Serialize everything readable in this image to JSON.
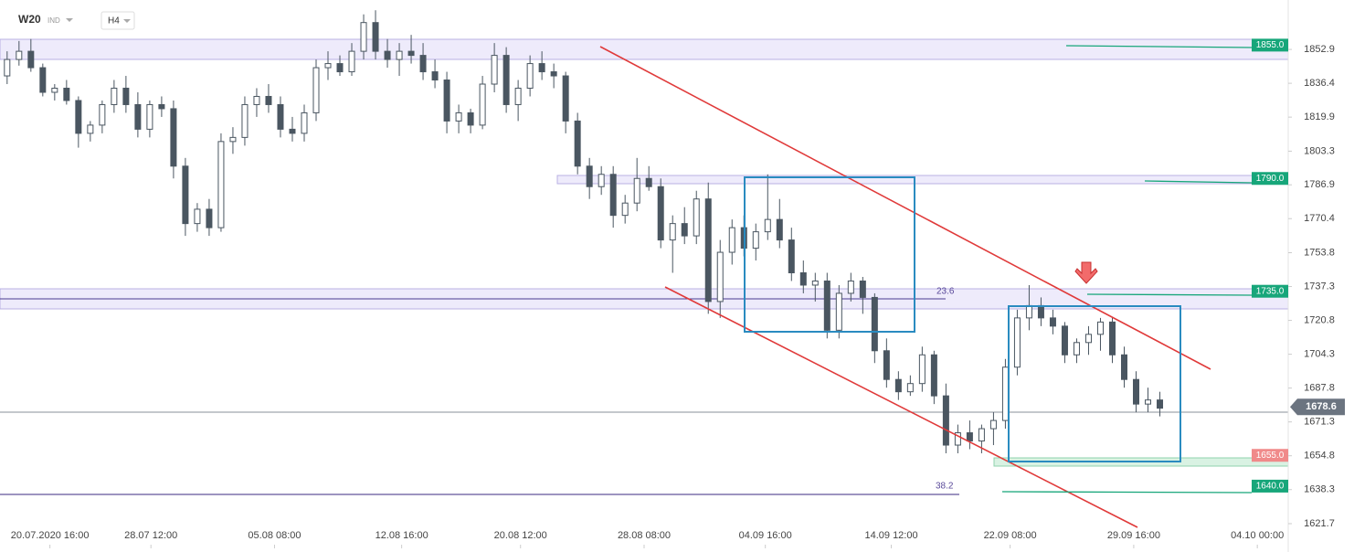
{
  "chart_data": {
    "type": "candlestick",
    "symbol": "W20",
    "market": "IND",
    "interval": "H4",
    "up_color": "#ffffff",
    "down_color": "#4a5661",
    "outline_color": "#4a5661",
    "ohlc": [
      [
        1840,
        1852,
        1836,
        1848
      ],
      [
        1848,
        1857,
        1845,
        1852
      ],
      [
        1852,
        1858,
        1842,
        1844
      ],
      [
        1844,
        1846,
        1830,
        1832
      ],
      [
        1832,
        1836,
        1828,
        1834
      ],
      [
        1834,
        1838,
        1826,
        1828
      ],
      [
        1828,
        1830,
        1805,
        1812
      ],
      [
        1812,
        1818,
        1808,
        1816
      ],
      [
        1816,
        1828,
        1812,
        1826
      ],
      [
        1826,
        1838,
        1822,
        1834
      ],
      [
        1834,
        1840,
        1822,
        1826
      ],
      [
        1826,
        1832,
        1810,
        1814
      ],
      [
        1814,
        1828,
        1810,
        1826
      ],
      [
        1826,
        1830,
        1820,
        1824
      ],
      [
        1824,
        1828,
        1790,
        1796
      ],
      [
        1796,
        1800,
        1762,
        1768
      ],
      [
        1768,
        1778,
        1764,
        1775
      ],
      [
        1775,
        1780,
        1762,
        1766
      ],
      [
        1766,
        1812,
        1764,
        1808
      ],
      [
        1808,
        1815,
        1802,
        1810
      ],
      [
        1810,
        1830,
        1806,
        1826
      ],
      [
        1826,
        1834,
        1820,
        1830
      ],
      [
        1830,
        1836,
        1822,
        1826
      ],
      [
        1826,
        1830,
        1810,
        1814
      ],
      [
        1814,
        1820,
        1808,
        1812
      ],
      [
        1812,
        1826,
        1808,
        1822
      ],
      [
        1822,
        1848,
        1818,
        1844
      ],
      [
        1844,
        1852,
        1838,
        1846
      ],
      [
        1846,
        1850,
        1840,
        1842
      ],
      [
        1842,
        1856,
        1840,
        1852
      ],
      [
        1852,
        1870,
        1848,
        1866
      ],
      [
        1866,
        1872,
        1848,
        1852
      ],
      [
        1852,
        1858,
        1844,
        1848
      ],
      [
        1848,
        1856,
        1840,
        1852
      ],
      [
        1852,
        1860,
        1846,
        1850
      ],
      [
        1850,
        1856,
        1838,
        1842
      ],
      [
        1842,
        1848,
        1834,
        1838
      ],
      [
        1838,
        1842,
        1812,
        1818
      ],
      [
        1818,
        1826,
        1812,
        1822
      ],
      [
        1822,
        1824,
        1812,
        1816
      ],
      [
        1816,
        1840,
        1814,
        1836
      ],
      [
        1836,
        1856,
        1832,
        1850
      ],
      [
        1850,
        1854,
        1822,
        1826
      ],
      [
        1826,
        1838,
        1818,
        1834
      ],
      [
        1834,
        1850,
        1830,
        1846
      ],
      [
        1846,
        1852,
        1838,
        1842
      ],
      [
        1842,
        1846,
        1834,
        1840
      ],
      [
        1840,
        1842,
        1812,
        1818
      ],
      [
        1818,
        1822,
        1792,
        1796
      ],
      [
        1796,
        1800,
        1780,
        1786
      ],
      [
        1786,
        1796,
        1782,
        1792
      ],
      [
        1792,
        1796,
        1766,
        1772
      ],
      [
        1772,
        1782,
        1768,
        1778
      ],
      [
        1778,
        1800,
        1774,
        1790
      ],
      [
        1790,
        1796,
        1784,
        1786
      ],
      [
        1786,
        1790,
        1756,
        1760
      ],
      [
        1760,
        1772,
        1744,
        1768
      ],
      [
        1768,
        1776,
        1758,
        1762
      ],
      [
        1762,
        1784,
        1758,
        1780
      ],
      [
        1780,
        1788,
        1724,
        1730
      ],
      [
        1730,
        1760,
        1722,
        1754
      ],
      [
        1754,
        1770,
        1748,
        1766
      ],
      [
        1766,
        1772,
        1752,
        1756
      ],
      [
        1756,
        1768,
        1750,
        1764
      ],
      [
        1764,
        1792,
        1760,
        1770
      ],
      [
        1770,
        1780,
        1756,
        1760
      ],
      [
        1760,
        1766,
        1740,
        1744
      ],
      [
        1744,
        1750,
        1734,
        1738
      ],
      [
        1738,
        1744,
        1730,
        1740
      ],
      [
        1740,
        1744,
        1712,
        1716
      ],
      [
        1716,
        1738,
        1712,
        1734
      ],
      [
        1734,
        1744,
        1730,
        1740
      ],
      [
        1740,
        1742,
        1724,
        1732
      ],
      [
        1732,
        1734,
        1700,
        1706
      ],
      [
        1706,
        1712,
        1688,
        1692
      ],
      [
        1692,
        1696,
        1682,
        1686
      ],
      [
        1686,
        1694,
        1684,
        1690
      ],
      [
        1690,
        1708,
        1686,
        1704
      ],
      [
        1704,
        1706,
        1680,
        1684
      ],
      [
        1684,
        1690,
        1656,
        1660
      ],
      [
        1660,
        1670,
        1656,
        1666
      ],
      [
        1666,
        1672,
        1658,
        1662
      ],
      [
        1662,
        1670,
        1656,
        1668
      ],
      [
        1668,
        1676,
        1660,
        1672
      ],
      [
        1672,
        1702,
        1668,
        1698
      ],
      [
        1698,
        1726,
        1694,
        1722
      ],
      [
        1722,
        1738,
        1716,
        1728
      ],
      [
        1728,
        1732,
        1718,
        1722
      ],
      [
        1722,
        1726,
        1714,
        1718
      ],
      [
        1718,
        1720,
        1700,
        1704
      ],
      [
        1704,
        1712,
        1700,
        1710
      ],
      [
        1710,
        1718,
        1704,
        1714
      ],
      [
        1714,
        1722,
        1706,
        1720
      ],
      [
        1720,
        1722,
        1700,
        1704
      ],
      [
        1704,
        1708,
        1688,
        1692
      ],
      [
        1692,
        1696,
        1676,
        1680
      ],
      [
        1680,
        1688,
        1676,
        1682
      ],
      [
        1682,
        1686,
        1674,
        1678
      ]
    ],
    "xlim": [
      -0.6,
      107.8
    ],
    "xticks": [
      {
        "value": 3.6,
        "label": "20.07.2020 16:00"
      },
      {
        "value": 12.1,
        "label": "28.07 12:00"
      },
      {
        "value": 22.5,
        "label": "05.08 08:00"
      },
      {
        "value": 33.2,
        "label": "12.08 16:00"
      },
      {
        "value": 43.2,
        "label": "20.08 12:00"
      },
      {
        "value": 53.6,
        "label": "28.08 08:00"
      },
      {
        "value": 63.8,
        "label": "04.09 16:00"
      },
      {
        "value": 74.4,
        "label": "14.09 12:00"
      },
      {
        "value": 84.4,
        "label": "22.09 08:00"
      },
      {
        "value": 94.8,
        "label": "29.09 16:00"
      },
      {
        "value": 105.2,
        "label": "04.10 00:00"
      }
    ],
    "ylim": [
      1620.8,
      1877.0
    ],
    "yticks": [
      1852.9,
      1836.4,
      1819.9,
      1803.3,
      1786.9,
      1770.4,
      1753.8,
      1737.3,
      1720.8,
      1704.3,
      1687.8,
      1671.3,
      1654.8,
      1638.3,
      1621.7
    ],
    "levels": [
      {
        "value": 1855,
        "label": "1855.0",
        "color": "#17a67a"
      },
      {
        "value": 1790,
        "label": "1790.0",
        "color": "#17a67a"
      },
      {
        "value": 1735,
        "label": "1735.0",
        "color": "#17a67a"
      },
      {
        "value": 1655,
        "label": "1655.0",
        "color": "#f08a8a"
      },
      {
        "value": 1640,
        "label": "1640.0",
        "color": "#17a67a"
      }
    ],
    "last_price": {
      "value": 1678.6,
      "label": "1678.6",
      "color": "#6b7480"
    },
    "fib_labels": [
      "38.2",
      "23.6"
    ]
  }
}
